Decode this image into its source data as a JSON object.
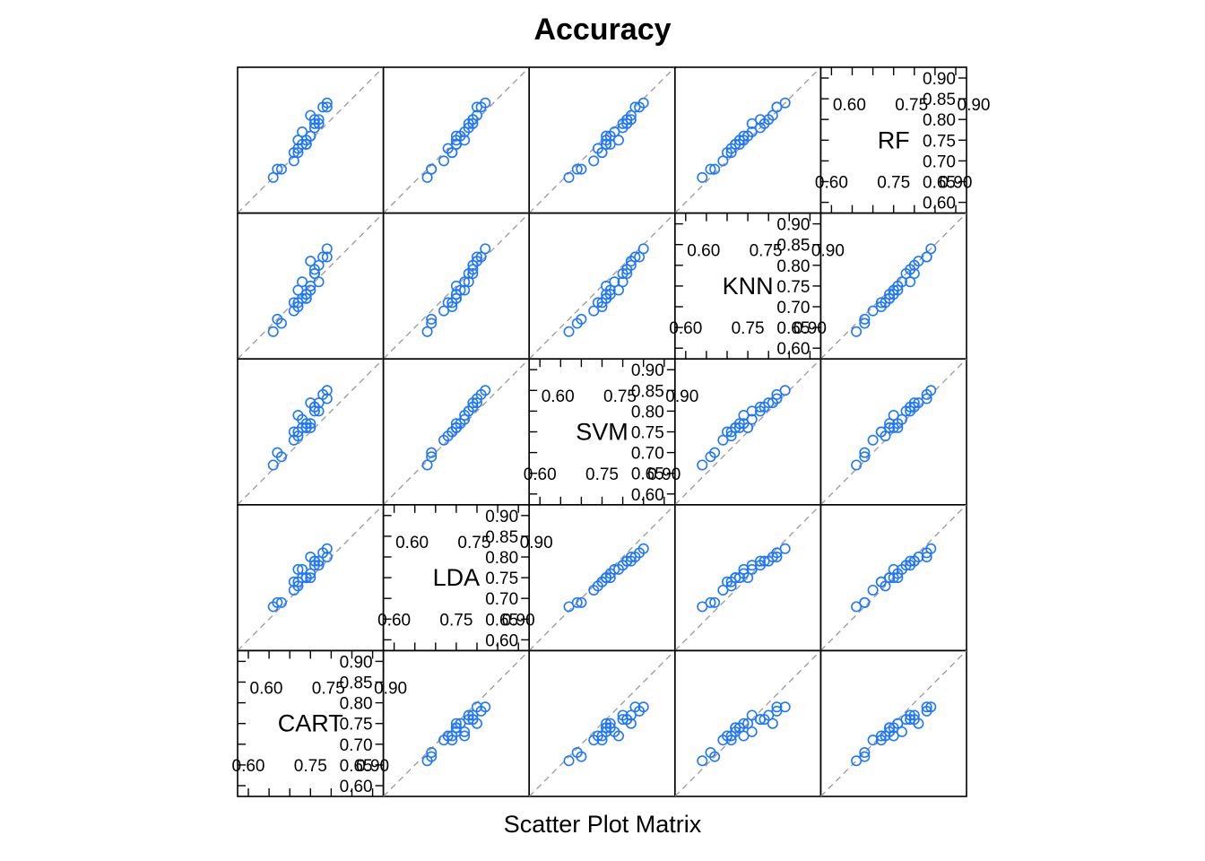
{
  "chart_data": {
    "type": "scatter",
    "title": "Accuracy",
    "xlabel": "Scatter Plot Matrix",
    "variables": [
      "CART",
      "LDA",
      "SVM",
      "KNN",
      "RF"
    ],
    "range": [
      0.6,
      0.9
    ],
    "tick_values": [
      0.6,
      0.65,
      0.7,
      0.75,
      0.8,
      0.85,
      0.9
    ],
    "tick_labels": [
      "0.60",
      "0.65",
      "0.70",
      "0.75",
      "0.80",
      "0.85",
      "0.90"
    ],
    "axis_labels": [
      "0.60",
      "0.75",
      "0.90"
    ],
    "reference_line": "y = x",
    "grid": false,
    "colors": {
      "points": "#1f77ff",
      "diagonal": "#999999",
      "frame": "#000000"
    },
    "samples": {
      "CART": [
        0.74,
        0.76,
        0.72,
        0.77,
        0.75,
        0.73,
        0.74,
        0.71,
        0.75,
        0.79,
        0.75,
        0.76,
        0.74,
        0.73,
        0.79,
        0.78,
        0.76,
        0.77,
        0.68,
        0.72,
        0.66,
        0.71,
        0.72,
        0.67,
        0.74
      ],
      "LDA": [
        0.75,
        0.78,
        0.77,
        0.79,
        0.76,
        0.75,
        0.75,
        0.74,
        0.75,
        0.8,
        0.8,
        0.79,
        0.75,
        0.77,
        0.82,
        0.81,
        0.79,
        0.78,
        0.69,
        0.74,
        0.68,
        0.72,
        0.73,
        0.69,
        0.75
      ],
      "SVM": [
        0.76,
        0.8,
        0.79,
        0.82,
        0.77,
        0.76,
        0.77,
        0.75,
        0.76,
        0.83,
        0.82,
        0.81,
        0.76,
        0.78,
        0.85,
        0.84,
        0.81,
        0.8,
        0.69,
        0.75,
        0.67,
        0.73,
        0.74,
        0.7,
        0.76
      ],
      "KNN": [
        0.72,
        0.78,
        0.74,
        0.8,
        0.74,
        0.72,
        0.73,
        0.71,
        0.75,
        0.82,
        0.81,
        0.79,
        0.72,
        0.76,
        0.84,
        0.82,
        0.78,
        0.76,
        0.66,
        0.7,
        0.64,
        0.69,
        0.71,
        0.67,
        0.73
      ],
      "RF": [
        0.74,
        0.78,
        0.75,
        0.8,
        0.76,
        0.74,
        0.74,
        0.72,
        0.76,
        0.83,
        0.81,
        0.79,
        0.74,
        0.77,
        0.84,
        0.83,
        0.8,
        0.79,
        0.68,
        0.72,
        0.66,
        0.7,
        0.73,
        0.68,
        0.75
      ]
    }
  }
}
